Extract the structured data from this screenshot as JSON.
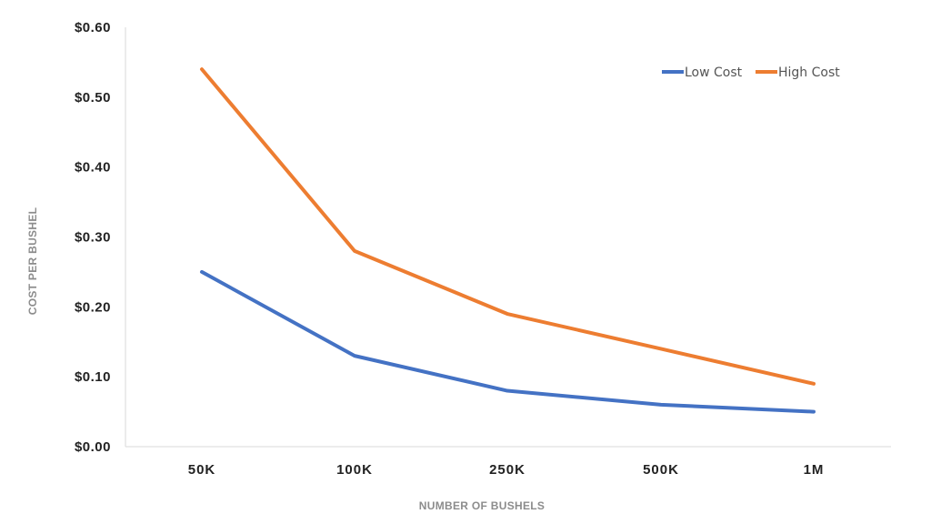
{
  "chart_data": {
    "type": "line",
    "title": "",
    "xlabel": "NUMBER OF BUSHELS",
    "ylabel": "COST PER BUSHEL",
    "categories": [
      "50K",
      "100K",
      "250K",
      "500K",
      "1M"
    ],
    "ylim": [
      0,
      0.6
    ],
    "yticks": [
      "$0.00",
      "$0.10",
      "$0.20",
      "$0.30",
      "$0.40",
      "$0.50",
      "$0.60"
    ],
    "grid": false,
    "legend_position": "top-right",
    "series": [
      {
        "name": "Low Cost",
        "color": "#4472c4",
        "values": [
          0.25,
          0.13,
          0.08,
          0.06,
          0.05
        ]
      },
      {
        "name": "High Cost",
        "color": "#ed7d31",
        "values": [
          0.54,
          0.28,
          0.19,
          0.14,
          0.09
        ]
      }
    ]
  }
}
